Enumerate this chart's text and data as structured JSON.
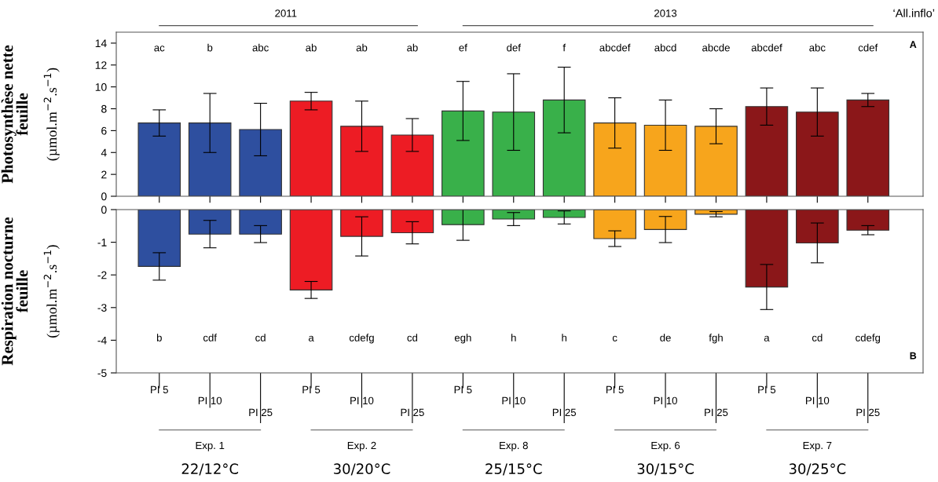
{
  "chart_data": [
    {
      "type": "bar",
      "ylabel": "Photosynthèse nette\nfeuille\n(µmol.m$^{−2}$.s$^{−1}$)",
      "values": [
        6.7,
        6.7,
        6.1,
        8.7,
        6.4,
        5.6,
        7.8,
        7.7,
        8.8,
        6.7,
        6.5,
        6.4,
        8.2,
        7.7,
        8.8
      ],
      "errors": [
        1.2,
        2.7,
        2.4,
        0.8,
        2.3,
        1.5,
        2.7,
        3.5,
        3.0,
        2.3,
        2.3,
        1.6,
        1.7,
        2.2,
        0.6
      ],
      "colors": [
        "#2e4f9f",
        "#2e4f9f",
        "#2e4f9f",
        "#ed1c24",
        "#ed1c24",
        "#ed1c24",
        "#39b04a",
        "#39b04a",
        "#39b04a",
        "#f7a51c",
        "#f7a51c",
        "#f7a51c",
        "#8b1719",
        "#8b1719",
        "#8b1719"
      ],
      "ylim": [
        0,
        15
      ],
      "yticks": [
        0,
        2,
        4,
        6,
        8,
        10,
        12,
        14
      ],
      "tick_labels": "y",
      "annotations": [
        "ac",
        "b",
        "abc",
        "ab",
        "ab",
        "ab",
        "ef",
        "def",
        "f",
        "abcdef",
        "abcd",
        "abcde",
        "abcdef",
        "abc",
        "cdef",
        "2011",
        "2013",
        "‘All.inflo’",
        "A"
      ]
    },
    {
      "type": "bar",
      "ylabel": "Respiration nocturne\nfeuille\n(µmol.m$^{−2}$.s$^{−1}$)",
      "categories": [
        "PI 5",
        "PI 10",
        "PI 25",
        "PI 5",
        "PI 10",
        "PI 25",
        "PI 5",
        "PI 10",
        "PI 25",
        "PI 5",
        "PI 10",
        "PI 25",
        "PI 5",
        "PI 10",
        "PI 25"
      ],
      "values": [
        -1.74,
        -0.75,
        -0.75,
        -2.46,
        -0.82,
        -0.71,
        -0.46,
        -0.29,
        -0.24,
        -0.89,
        -0.61,
        -0.14,
        -2.37,
        -1.02,
        -0.63
      ],
      "errors": [
        0.42,
        0.42,
        0.26,
        0.26,
        0.6,
        0.34,
        0.48,
        0.2,
        0.2,
        0.24,
        0.4,
        0.08,
        0.69,
        0.61,
        0.14
      ],
      "colors": [
        "#2e4f9f",
        "#2e4f9f",
        "#2e4f9f",
        "#ed1c24",
        "#ed1c24",
        "#ed1c24",
        "#39b04a",
        "#39b04a",
        "#39b04a",
        "#f7a51c",
        "#f7a51c",
        "#f7a51c",
        "#8b1719",
        "#8b1719",
        "#8b1719"
      ],
      "ylim": [
        -5,
        0
      ],
      "yticks": [
        -5,
        -4,
        -3,
        -2,
        -1,
        0
      ],
      "annotations": [
        "b",
        "cdf",
        "cd",
        "a",
        "cdefg",
        "cd",
        "egh",
        "h",
        "h",
        "c",
        "de",
        "fgh",
        "a",
        "cd",
        "cdefg",
        "B",
        "Exp. 1",
        "22/12°C",
        "Exp. 2",
        "30/20°C",
        "Exp. 8",
        "25/15°C",
        "Exp. 6",
        "30/15°C",
        "Exp. 7",
        "30/25°C"
      ]
    }
  ]
}
